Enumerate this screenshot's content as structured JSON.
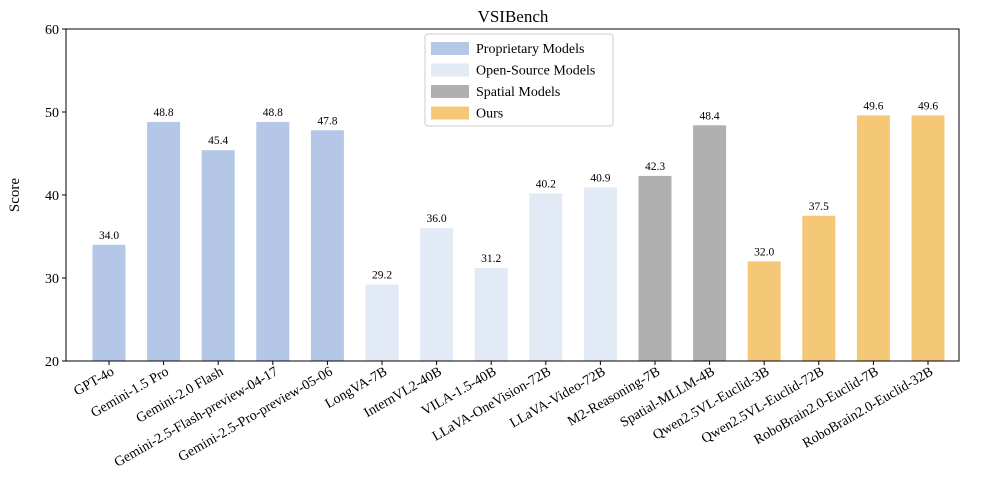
{
  "chart_data": {
    "type": "bar",
    "title": "VSIBench",
    "xlabel": "",
    "ylabel": "Score",
    "ylim": [
      20,
      60
    ],
    "yticks": [
      20,
      30,
      40,
      50,
      60
    ],
    "grid": false,
    "legend_position": "top-center",
    "groups": [
      {
        "name": "Proprietary Models",
        "color": "#b4c7e7"
      },
      {
        "name": "Open-Source Models",
        "color": "#e2eaf6"
      },
      {
        "name": "Spatial Models",
        "color": "#b0b0b0"
      },
      {
        "name": "Ours",
        "color": "#f5c878"
      }
    ],
    "categories": [
      "GPT-4o",
      "Gemini-1.5 Pro",
      "Gemini-2.0 Flash",
      "Gemini-2.5-Flash-preview-04-17",
      "Gemini-2.5-Pro-preview-05-06",
      "LongVA-7B",
      "InternVL2-40B",
      "VILA-1.5-40B",
      "LLaVA-OneVision-72B",
      "LLaVA-Video-72B",
      "M2-Reasoning-7B",
      "Spatial-MLLM-4B",
      "Qwen2.5VL-Euclid-3B",
      "Qwen2.5VL-Euclid-72B",
      "RoboBrain2.0-Euclid-7B",
      "RoboBrain2.0-Euclid-32B"
    ],
    "values": [
      34.0,
      48.8,
      45.4,
      48.8,
      47.8,
      29.2,
      36.0,
      31.2,
      40.2,
      40.9,
      42.3,
      48.4,
      32.0,
      37.5,
      49.6,
      49.6
    ],
    "value_labels": [
      "34.0",
      "48.8",
      "45.4",
      "48.8",
      "47.8",
      "29.2",
      "36.0",
      "31.2",
      "40.2",
      "40.9",
      "42.3",
      "48.4",
      "32.0",
      "37.5",
      "49.6",
      "49.6"
    ],
    "group_index": [
      0,
      0,
      0,
      0,
      0,
      1,
      1,
      1,
      1,
      1,
      2,
      2,
      3,
      3,
      3,
      3
    ]
  }
}
